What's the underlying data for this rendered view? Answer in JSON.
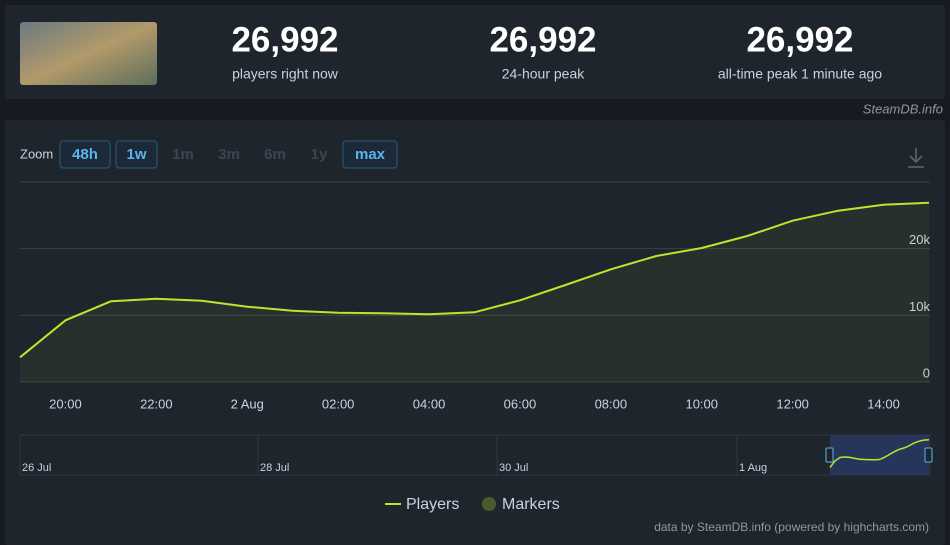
{
  "header": {
    "stats": [
      {
        "value": "26,992",
        "label": "players right now"
      },
      {
        "value": "26,992",
        "label": "24-hour peak"
      },
      {
        "value": "26,992",
        "label": "all-time peak 1 minute ago"
      }
    ],
    "source": "SteamDB.info"
  },
  "zoom": {
    "label": "Zoom",
    "buttons": [
      {
        "label": "48h",
        "active": true
      },
      {
        "label": "1w",
        "active": true
      },
      {
        "label": "1m",
        "active": false
      },
      {
        "label": "3m",
        "active": false
      },
      {
        "label": "6m",
        "active": false
      },
      {
        "label": "1y",
        "active": false
      },
      {
        "label": "max",
        "active": true
      }
    ]
  },
  "chart_data": {
    "type": "line",
    "categories": [
      null,
      "20:00",
      null,
      "22:00",
      null,
      "2 Aug",
      null,
      "02:00",
      null,
      "04:00",
      null,
      "06:00",
      null,
      "08:00",
      null,
      "10:00",
      null,
      "12:00",
      null,
      "14:00",
      null
    ],
    "series": [
      {
        "name": "Players",
        "color": "#b8e82c",
        "values": [
          3700,
          9250,
          12100,
          12500,
          12200,
          11300,
          10700,
          10400,
          10300,
          10150,
          10450,
          12250,
          14550,
          16900,
          18900,
          20100,
          21900,
          24200,
          25700,
          26600,
          26900
        ]
      }
    ],
    "ylim": [
      0,
      30000
    ],
    "yticks": [
      {
        "value": 0,
        "label": "0"
      },
      {
        "value": 10000,
        "label": "10k"
      },
      {
        "value": 20000,
        "label": "20k"
      }
    ],
    "grid": true,
    "legend_extra": {
      "name": "Markers",
      "color": "#4b5a2b"
    }
  },
  "navigator": {
    "labels": [
      "26 Jul",
      "28 Jul",
      "30 Jul",
      "1 Aug"
    ]
  },
  "credit": "data by SteamDB.info (powered by highcharts.com)"
}
